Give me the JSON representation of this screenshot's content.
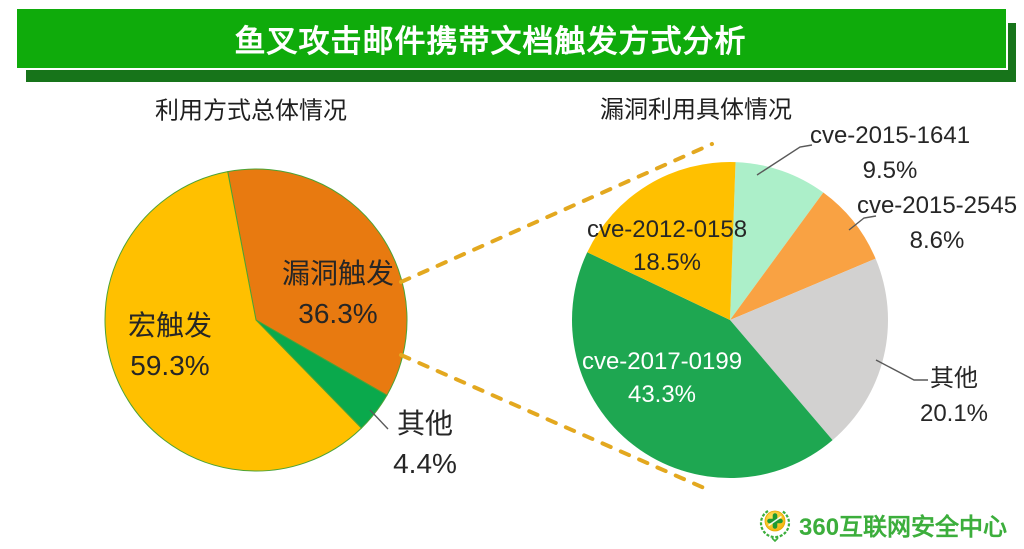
{
  "page": {
    "title": "鱼叉攻击邮件携带文档触发方式分析",
    "banner_color": "#0FAB0B",
    "banner_shadow_color": "#17741A",
    "frame_color": "#12A312"
  },
  "chart_data": [
    {
      "type": "pie",
      "title": "利用方式总体情况",
      "start_angle_deg": -10.8,
      "outline_color": "#4CA335",
      "legend_position": "none",
      "slices": [
        {
          "label": "漏洞触发",
          "value": 36.3,
          "display": "36.3%",
          "color": "#E87A10",
          "label_placement": "inside"
        },
        {
          "label": "其他",
          "value": 4.4,
          "display": "4.4%",
          "color": "#0AA94C",
          "label_placement": "outside"
        },
        {
          "label": "宏触发",
          "value": 59.3,
          "display": "59.3%",
          "color": "#FFC000",
          "label_placement": "inside"
        }
      ]
    },
    {
      "type": "pie",
      "title": "漏洞利用具体情况",
      "start_angle_deg": 2,
      "outline_color": "none",
      "legend_position": "none",
      "slices": [
        {
          "label": "cve-2015-1641",
          "value": 9.5,
          "display": "9.5%",
          "color": "#ACEFC9",
          "label_placement": "outside"
        },
        {
          "label": "cve-2015-2545",
          "value": 8.6,
          "display": "8.6%",
          "color": "#F9A243",
          "label_placement": "outside"
        },
        {
          "label": "其他",
          "value": 20.1,
          "display": "20.1%",
          "color": "#D2D1D0",
          "label_placement": "outside"
        },
        {
          "label": "cve-2017-0199",
          "value": 43.3,
          "display": "43.3%",
          "color": "#1EA751",
          "label_placement": "inside"
        },
        {
          "label": "cve-2012-0158",
          "value": 18.5,
          "display": "18.5%",
          "color": "#FFC000",
          "label_placement": "inside"
        }
      ]
    }
  ],
  "callout": {
    "from": "漏洞触发",
    "dash_color": "#E3A81F"
  },
  "footer": {
    "logo_text": "360互联网安全中心",
    "logo_color": "#3CAE3C",
    "logo_ball_color": "#F5B70A",
    "logo_cross_color": "#1F9A31"
  }
}
